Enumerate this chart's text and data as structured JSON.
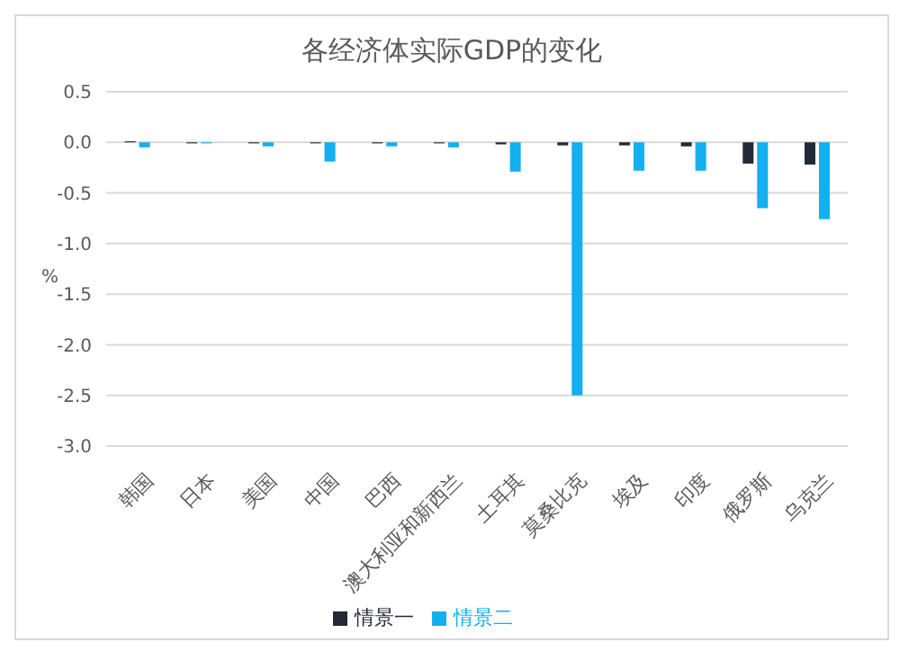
{
  "chart_data": {
    "type": "bar",
    "title": "各经济体实际GDP的变化",
    "ylabel": "%",
    "categories": [
      "韩国",
      "日本",
      "美国",
      "中国",
      "巴西",
      "澳大利亚和新西兰",
      "土耳其",
      "莫桑比克",
      "埃及",
      "印度",
      "俄罗斯",
      "乌克兰"
    ],
    "series": [
      {
        "name": "情景一",
        "color": "#222a35",
        "values": [
          0.01,
          -0.01,
          -0.01,
          -0.01,
          -0.01,
          -0.01,
          -0.02,
          -0.03,
          -0.03,
          -0.04,
          -0.21,
          -0.22
        ]
      },
      {
        "name": "情景二",
        "color": "#12b0ef",
        "values": [
          -0.05,
          -0.01,
          -0.04,
          -0.19,
          -0.04,
          -0.05,
          -0.29,
          -2.5,
          -0.28,
          -0.28,
          -0.65,
          -0.76
        ]
      }
    ],
    "ylim": [
      -3,
      0.5
    ],
    "yticks": [
      {
        "value": 0.5,
        "label": "0.5"
      },
      {
        "value": 0,
        "label": "0.0"
      },
      {
        "value": -0.5,
        "label": "-0.5"
      },
      {
        "value": -1,
        "label": "-1.0"
      },
      {
        "value": -1.5,
        "label": "-1.5"
      },
      {
        "value": -2,
        "label": "-2.0"
      },
      {
        "value": -2.5,
        "label": "-2.5"
      },
      {
        "value": -3,
        "label": "-3.0"
      }
    ],
    "grid": "y",
    "legend": "bottom"
  }
}
